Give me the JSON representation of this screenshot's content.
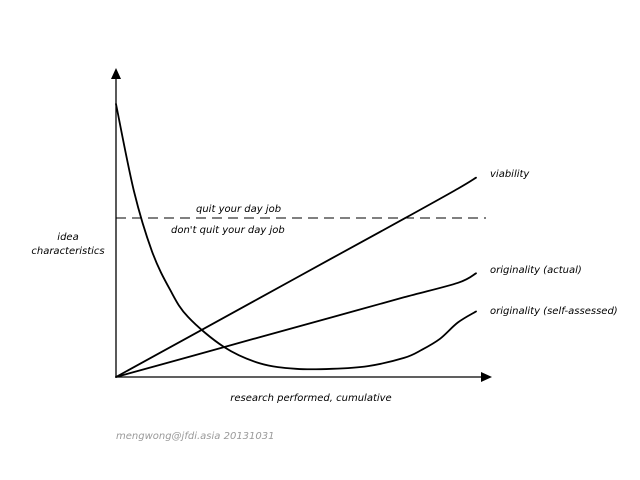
{
  "chart_data": {
    "type": "line",
    "title": "",
    "xlabel": "research performed, cumulative",
    "ylabel": "idea characteristics",
    "grid": false,
    "legend": "none",
    "threshold": {
      "above_label": "quit your day job",
      "below_label": "don't quit your day job"
    },
    "series": [
      {
        "name": "viability",
        "x": [
          0,
          0.2,
          0.4,
          0.6,
          0.8,
          0.95,
          1.0
        ],
        "y": [
          0,
          0.145,
          0.29,
          0.435,
          0.58,
          0.69,
          0.73
        ]
      },
      {
        "name": "originality (actual)",
        "x": [
          0,
          0.2,
          0.4,
          0.6,
          0.8,
          0.95,
          1.0
        ],
        "y": [
          0,
          0.073,
          0.146,
          0.219,
          0.292,
          0.345,
          0.38
        ]
      },
      {
        "name": "originality (self-assessed)",
        "x": [
          0,
          0.05,
          0.1,
          0.15,
          0.2,
          0.3,
          0.4,
          0.5,
          0.6,
          0.7,
          0.8,
          0.85,
          0.9,
          0.95,
          1.0
        ],
        "y": [
          1.0,
          0.68,
          0.46,
          0.32,
          0.22,
          0.11,
          0.05,
          0.03,
          0.03,
          0.04,
          0.07,
          0.1,
          0.14,
          0.2,
          0.24
        ]
      }
    ]
  },
  "credit": "mengwong@jfdi.asia 20131031"
}
